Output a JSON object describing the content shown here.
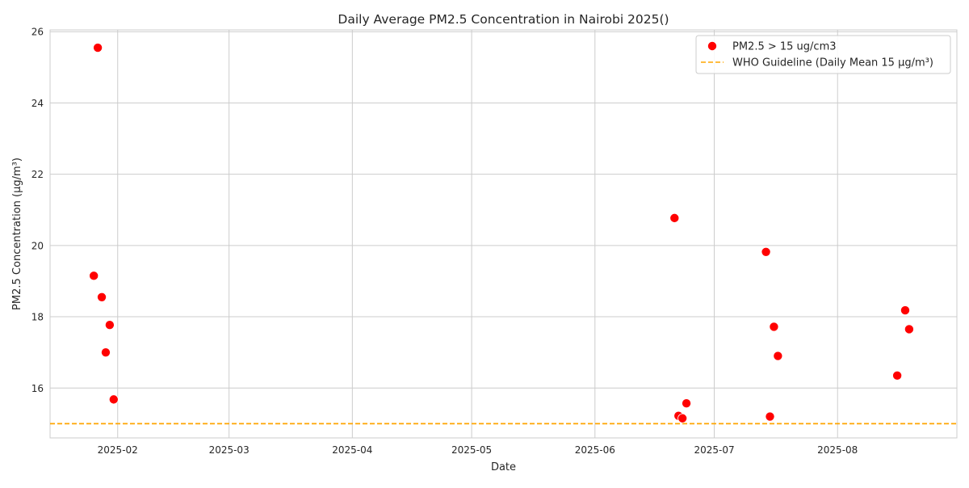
{
  "chart_data": {
    "type": "scatter",
    "title": "Daily Average PM2.5 Concentration in Nairobi 2025()",
    "xlabel": "Date",
    "ylabel": "PM2.5 Concentration (µg/m³)",
    "x_scale": "date",
    "xlim": [
      "2025-01-15",
      "2025-08-31"
    ],
    "ylim": [
      14.6,
      26.05
    ],
    "x_ticks": [
      "2025-02",
      "2025-03",
      "2025-04",
      "2025-05",
      "2025-06",
      "2025-07",
      "2025-08"
    ],
    "y_ticks": [
      16,
      18,
      20,
      22,
      24,
      26
    ],
    "grid": true,
    "legend_position": "top-right",
    "series": [
      {
        "name": "PM2.5 > 15 ug/cm3",
        "color": "#ff0000",
        "points": [
          {
            "x": "2025-01-26",
            "y": 19.15
          },
          {
            "x": "2025-01-27",
            "y": 25.55
          },
          {
            "x": "2025-01-28",
            "y": 18.55
          },
          {
            "x": "2025-01-29",
            "y": 17.0
          },
          {
            "x": "2025-01-30",
            "y": 17.77
          },
          {
            "x": "2025-01-31",
            "y": 15.68
          },
          {
            "x": "2025-06-21",
            "y": 20.77
          },
          {
            "x": "2025-06-22",
            "y": 15.22
          },
          {
            "x": "2025-06-23",
            "y": 15.15
          },
          {
            "x": "2025-06-24",
            "y": 15.57
          },
          {
            "x": "2025-07-14",
            "y": 19.82
          },
          {
            "x": "2025-07-15",
            "y": 15.2
          },
          {
            "x": "2025-07-16",
            "y": 17.72
          },
          {
            "x": "2025-07-17",
            "y": 16.9
          },
          {
            "x": "2025-08-16",
            "y": 16.35
          },
          {
            "x": "2025-08-18",
            "y": 18.18
          },
          {
            "x": "2025-08-19",
            "y": 17.65
          }
        ]
      }
    ],
    "reference_lines": [
      {
        "name": "WHO Guideline (Daily Mean 15 μg/m³)",
        "y": 15,
        "color": "#ffa500",
        "style": "dashed"
      }
    ]
  }
}
